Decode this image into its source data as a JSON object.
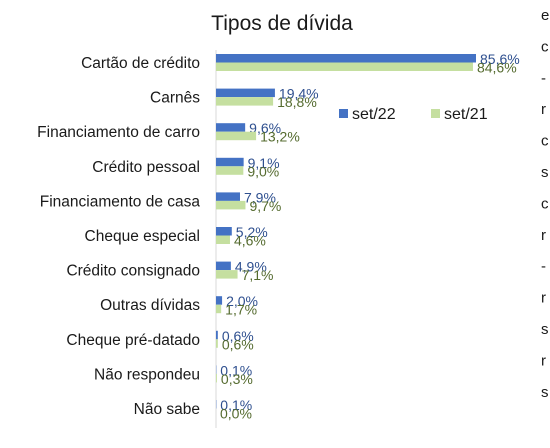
{
  "chart_data": {
    "type": "bar",
    "orientation": "horizontal",
    "title": "Tipos de dívida",
    "categories": [
      "Cartão de crédito",
      "Carnês",
      "Financiamento de carro",
      "Crédito pessoal",
      "Financiamento de casa",
      "Cheque especial",
      "Crédito consignado",
      "Outras dívidas",
      "Cheque pré-datado",
      "Não respondeu",
      "Não sabe"
    ],
    "series": [
      {
        "name": "set/22",
        "color": "#4472c4",
        "label_color": "#2e4f8f",
        "values": [
          85.6,
          19.4,
          9.6,
          9.1,
          7.9,
          5.2,
          4.9,
          2.0,
          0.6,
          0.1,
          0.1
        ],
        "labels": [
          "85,6%",
          "19,4%",
          "9,6%",
          "9,1%",
          "7,9%",
          "5,2%",
          "4,9%",
          "2,0%",
          "0,6%",
          "0,1%",
          "0,1%"
        ]
      },
      {
        "name": "set/21",
        "color": "#c5dfa0",
        "label_color": "#556b2f",
        "values": [
          84.6,
          18.8,
          13.2,
          9.0,
          9.7,
          4.6,
          7.1,
          1.7,
          0.6,
          0.3,
          0.0
        ],
        "labels": [
          "84,6%",
          "18,8%",
          "13,2%",
          "9,0%",
          "9,7%",
          "4,6%",
          "7,1%",
          "1,7%",
          "0,6%",
          "0,3%",
          "0,0%"
        ]
      }
    ],
    "xlim": [
      0,
      100
    ],
    "grid": false,
    "legend_position": "upper-right"
  },
  "edge_text": [
    "e",
    "c",
    "-",
    "r",
    "c",
    "s",
    "c",
    "r",
    "-",
    "r",
    "s",
    "r",
    "s"
  ]
}
